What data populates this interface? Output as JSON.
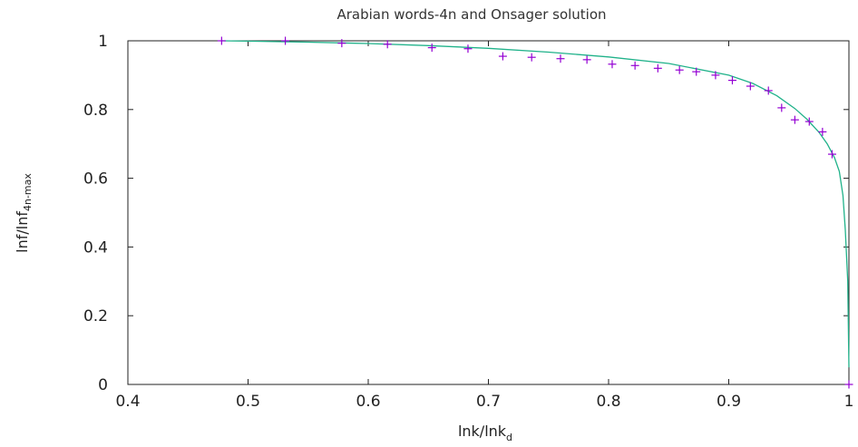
{
  "chart_data": {
    "type": "scatter",
    "title": "Arabian words-4n and Onsager solution",
    "xlabel": {
      "main": "lnk/lnk",
      "sub": "d"
    },
    "ylabel": {
      "main": "lnf/lnf",
      "sub": "4n-max"
    },
    "xlim": [
      0.4,
      1.0
    ],
    "ylim": [
      0,
      1
    ],
    "x_ticks": [
      "0.4",
      "0.5",
      "0.6",
      "0.7",
      "0.8",
      "0.9",
      "1"
    ],
    "y_ticks": [
      "0",
      "0.2",
      "0.4",
      "0.6",
      "0.8",
      "1"
    ],
    "grid": false,
    "legend": "none",
    "series": [
      {
        "kind": "points",
        "marker": "plus",
        "color": "#9400d3",
        "x": [
          0.478,
          0.531,
          0.578,
          0.616,
          0.653,
          0.683,
          0.712,
          0.736,
          0.76,
          0.782,
          0.803,
          0.822,
          0.841,
          0.859,
          0.873,
          0.889,
          0.903,
          0.918,
          0.933,
          0.944,
          0.955,
          0.967,
          0.978,
          0.986,
          1.0
        ],
        "y": [
          1.0,
          1.0,
          0.993,
          0.99,
          0.98,
          0.977,
          0.955,
          0.952,
          0.948,
          0.945,
          0.932,
          0.928,
          0.92,
          0.915,
          0.91,
          0.9,
          0.885,
          0.868,
          0.855,
          0.805,
          0.77,
          0.765,
          0.735,
          0.67,
          0.0
        ]
      },
      {
        "kind": "line",
        "color": "#20b28a",
        "x": [
          0.478,
          0.5,
          0.55,
          0.6,
          0.65,
          0.7,
          0.75,
          0.8,
          0.85,
          0.9,
          0.92,
          0.94,
          0.955,
          0.965,
          0.975,
          0.982,
          0.988,
          0.992,
          0.995,
          0.997,
          0.999,
          1.0
        ],
        "y": [
          1.0,
          0.999,
          0.996,
          0.992,
          0.986,
          0.978,
          0.967,
          0.953,
          0.934,
          0.9,
          0.876,
          0.84,
          0.803,
          0.772,
          0.734,
          0.7,
          0.66,
          0.62,
          0.55,
          0.45,
          0.3,
          0.05
        ]
      }
    ]
  }
}
